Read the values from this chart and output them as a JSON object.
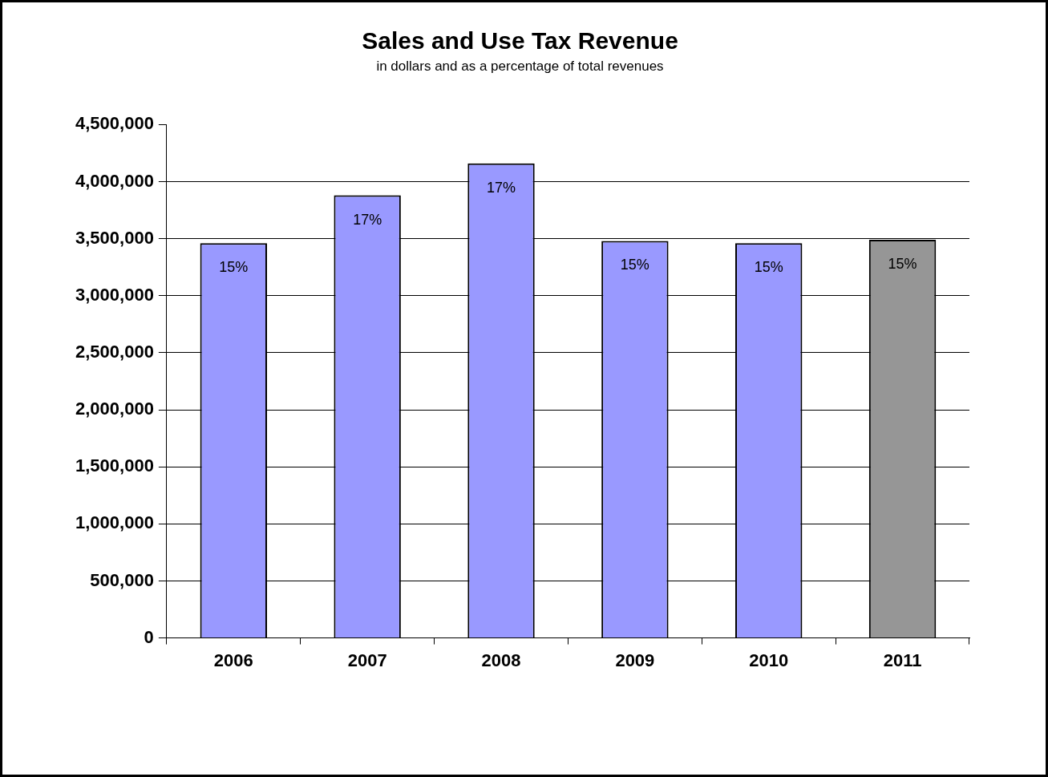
{
  "chart_data": {
    "type": "bar",
    "title": "Sales and Use Tax Revenue",
    "subtitle": "in dollars and as a percentage of total revenues",
    "categories": [
      "2006",
      "2007",
      "2008",
      "2009",
      "2010",
      "2011"
    ],
    "values": [
      3460000,
      3880000,
      4160000,
      3480000,
      3460000,
      3490000
    ],
    "colors": [
      "#9999ff",
      "#9999ff",
      "#9999ff",
      "#9999ff",
      "#9999ff",
      "#969696"
    ],
    "annotations": [
      {
        "text": "15%",
        "x": "2006",
        "y": 3460000
      },
      {
        "text": "17%",
        "x": "2007",
        "y": 3880000
      },
      {
        "text": "17%",
        "x": "2008",
        "y": 4160000
      },
      {
        "text": "15%",
        "x": "2009",
        "y": 3480000
      },
      {
        "text": "15%",
        "x": "2010",
        "y": 3460000
      },
      {
        "text": "15%",
        "x": "2011",
        "y": 3490000
      }
    ],
    "ylim": [
      0,
      4500000
    ],
    "yticks": [
      0,
      {
        "value": 500000,
        "label": "500,000"
      },
      {
        "value": 1000000,
        "label": "1,000,000"
      },
      {
        "value": 1500000,
        "label": "1,500,000"
      },
      {
        "value": 2000000,
        "label": "2,000,000"
      },
      {
        "value": 2500000,
        "label": "2,500,000"
      },
      {
        "value": 3000000,
        "label": "3,000,000"
      },
      {
        "value": 3500000,
        "label": "3,500,000"
      },
      {
        "value": 4000000,
        "label": "4,000,000"
      },
      {
        "value": 4500000,
        "label": "4,500,000"
      }
    ],
    "grid": "y",
    "legend": false
  }
}
